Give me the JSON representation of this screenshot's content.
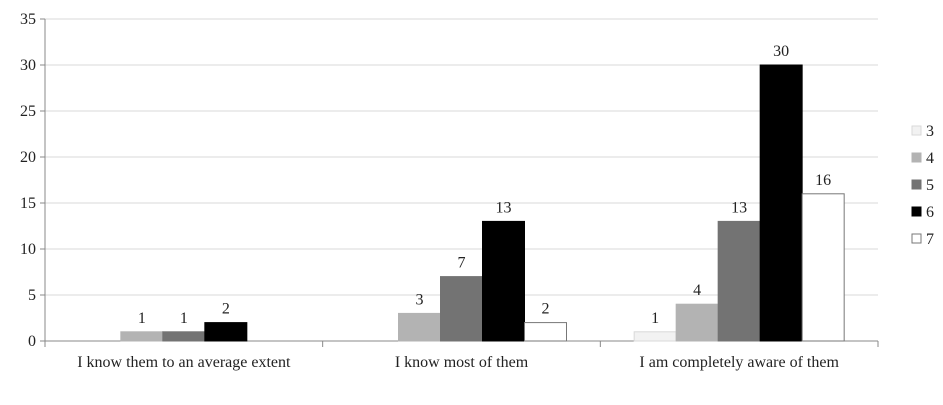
{
  "chart_data": {
    "type": "bar",
    "title": "",
    "xlabel": "",
    "ylabel": "",
    "ylim": [
      0,
      35
    ],
    "yticks": [
      0,
      5,
      10,
      15,
      20,
      25,
      30,
      35
    ],
    "grid": true,
    "legend_position": "right",
    "categories": [
      "I know them to an average extent",
      "I know most of them",
      "I am completely aware of them"
    ],
    "series": [
      {
        "name": "3",
        "color": "#f2f2f2",
        "stroke": "#d9d9d9",
        "values": [
          0,
          0,
          1
        ]
      },
      {
        "name": "4",
        "color": "#b3b3b3",
        "stroke": "#b3b3b3",
        "values": [
          1,
          3,
          4
        ]
      },
      {
        "name": "5",
        "color": "#737373",
        "stroke": "#737373",
        "values": [
          1,
          7,
          13
        ]
      },
      {
        "name": "6",
        "color": "#000000",
        "stroke": "#000000",
        "values": [
          2,
          13,
          30
        ]
      },
      {
        "name": "7",
        "color": "#ffffff",
        "stroke": "#777777",
        "values": [
          0,
          2,
          16
        ]
      }
    ]
  }
}
